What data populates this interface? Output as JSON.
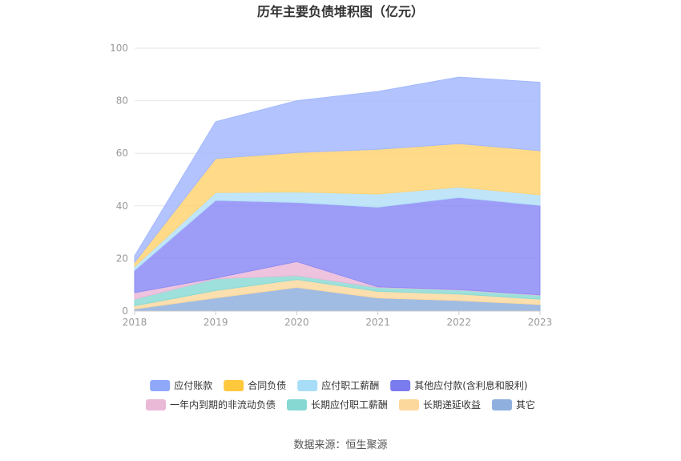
{
  "chart_data": {
    "type": "area",
    "stacked": true,
    "title": "历年主要负债堆积图（亿元）",
    "source": "数据来源：恒生聚源",
    "x": [
      "2018",
      "2019",
      "2020",
      "2021",
      "2022",
      "2023"
    ],
    "ylim": [
      0,
      100
    ],
    "yticks": [
      "0",
      "20",
      "40",
      "60",
      "80",
      "100"
    ],
    "grid": true,
    "legend_position": "bottom",
    "series": [
      {
        "name": "其它",
        "color": "#8fb0de",
        "values": [
          0.8,
          5.0,
          9.0,
          5.0,
          4.0,
          2.5
        ]
      },
      {
        "name": "长期递延收益",
        "color": "#fcd9a0",
        "values": [
          1.2,
          2.8,
          3.0,
          2.5,
          2.5,
          2.0
        ]
      },
      {
        "name": "长期应付职工薪酬",
        "color": "#8ddbd5",
        "values": [
          2.5,
          4.5,
          1.5,
          1.5,
          1.5,
          1.5
        ]
      },
      {
        "name": "一年内到期的非流动负债",
        "color": "#eab9d8",
        "values": [
          2.5,
          0.3,
          5.3,
          0.2,
          0.2,
          0.2
        ]
      },
      {
        "name": "其他应付款(含利息和股利)",
        "color": "#8c8cf7",
        "values": [
          8.5,
          29.5,
          22.5,
          30.3,
          35.0,
          34.0
        ]
      },
      {
        "name": "应付职工薪酬",
        "color": "#b5e0f7",
        "values": [
          1.5,
          3.0,
          4.0,
          5.0,
          4.0,
          4.0
        ]
      },
      {
        "name": "合同负债",
        "color": "#ffd474",
        "values": [
          1.5,
          12.9,
          15.0,
          17.0,
          16.5,
          16.8
        ]
      },
      {
        "name": "应付账款",
        "color": "#a5b9fd",
        "values": [
          2.5,
          14.0,
          19.7,
          22.0,
          25.3,
          26.0
        ]
      }
    ],
    "legend_order": [
      {
        "name": "应付账款",
        "color": "#8fa8fa"
      },
      {
        "name": "合同负债",
        "color": "#ffc83d"
      },
      {
        "name": "应付职工薪酬",
        "color": "#a8ddf8"
      },
      {
        "name": "其他应付款(含利息和股利)",
        "color": "#7b7bf0"
      },
      {
        "name": "一年内到期的非流动负债",
        "color": "#eab9d8"
      },
      {
        "name": "长期应付职工薪酬",
        "color": "#86d8d3"
      },
      {
        "name": "长期递延收益",
        "color": "#fdd89c"
      },
      {
        "name": "其它",
        "color": "#8fb0de"
      }
    ]
  }
}
